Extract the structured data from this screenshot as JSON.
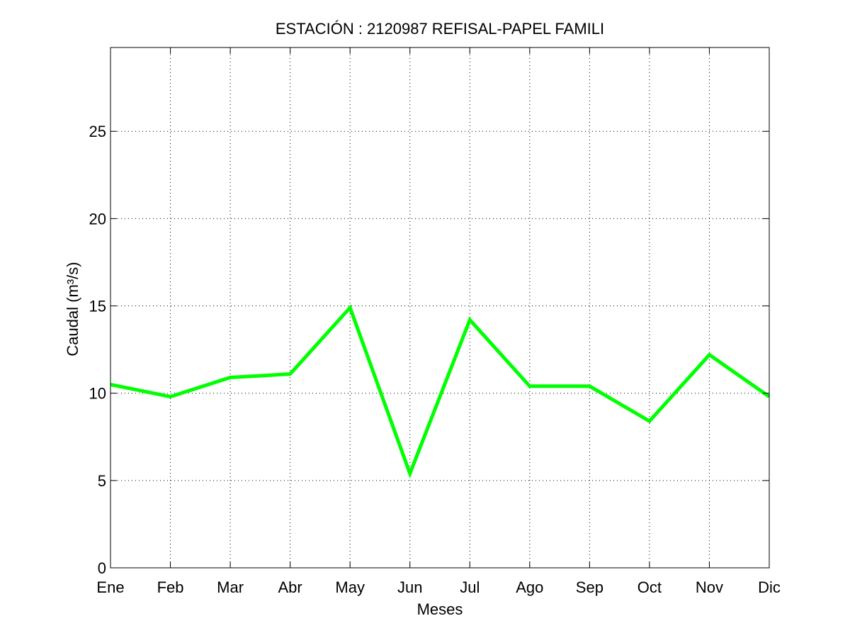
{
  "chart_data": {
    "type": "line",
    "title": "ESTACIÓN :  2120987  REFISAL-PAPEL FAMILI",
    "xlabel": "Meses",
    "ylabel": "Caudal (m³/s)",
    "categories": [
      "Ene",
      "Feb",
      "Mar",
      "Abr",
      "May",
      "Jun",
      "Jul",
      "Ago",
      "Sep",
      "Oct",
      "Nov",
      "Dic"
    ],
    "series": [
      {
        "values": [
          10.5,
          9.8,
          10.9,
          11.1,
          14.9,
          5.4,
          14.2,
          10.4,
          10.4,
          8.4,
          12.2,
          9.8
        ],
        "color": "#00ff00"
      }
    ],
    "ylim": [
      0,
      29.8
    ],
    "yticks": [
      0,
      5,
      10,
      15,
      20,
      25
    ],
    "grid": true,
    "colors": {
      "axis": "#000000",
      "grid": "#000000",
      "background": "#ffffff"
    }
  }
}
